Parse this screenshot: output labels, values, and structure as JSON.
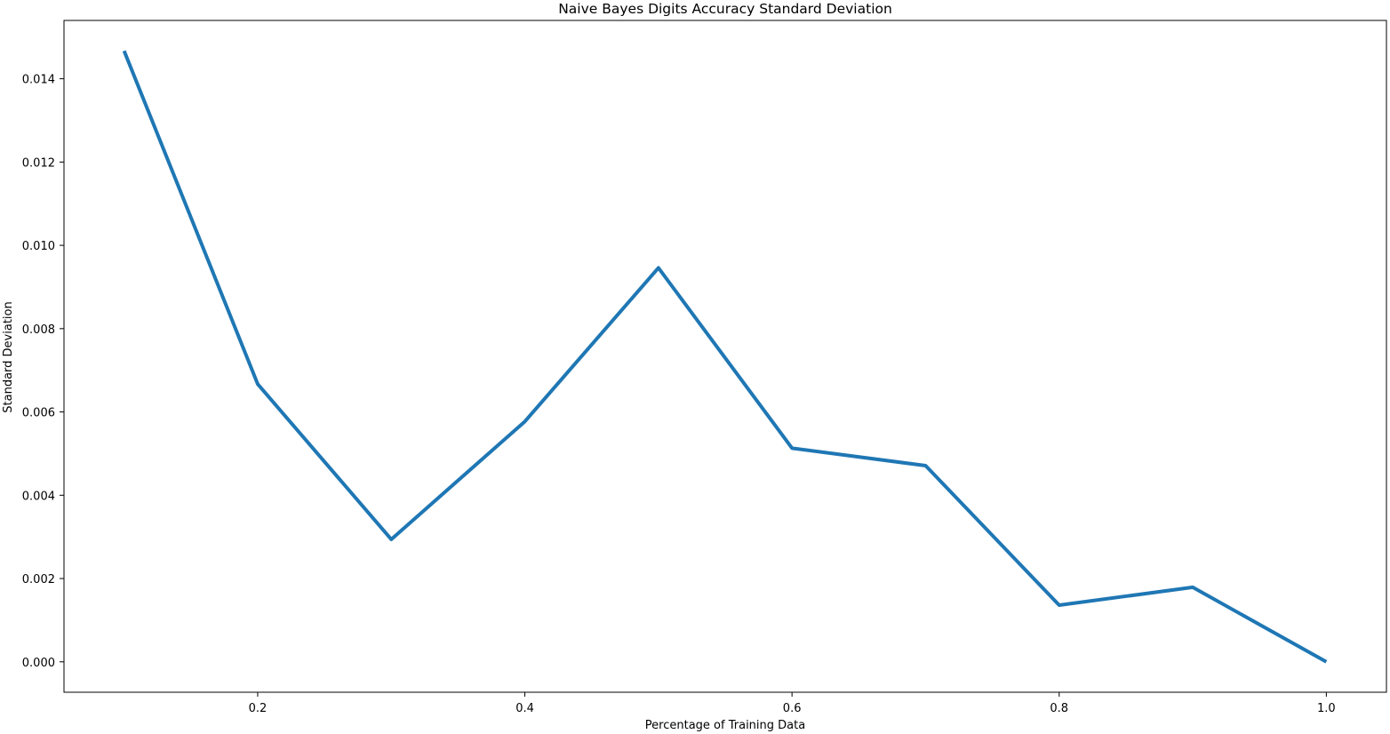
{
  "chart_data": {
    "type": "line",
    "title": "Naive Bayes Digits Accuracy Standard Deviation",
    "xlabel": "Percentage of Training Data",
    "ylabel": "Standard Deviation",
    "x": [
      0.1,
      0.2,
      0.3,
      0.4,
      0.5,
      0.6,
      0.7,
      0.8,
      0.9,
      1.0
    ],
    "series": [
      {
        "values": [
          0.01467,
          0.00667,
          0.00294,
          0.00577,
          0.00946,
          0.00513,
          0.00471,
          0.00136,
          0.00179,
          0.0
        ],
        "color": "#1f77b4"
      }
    ],
    "xlim": [
      0.055,
      1.045
    ],
    "ylim": [
      -0.00073,
      0.0154
    ],
    "xticks": [
      0.2,
      0.4,
      0.6,
      0.8,
      1.0
    ],
    "xtick_labels": [
      "0.2",
      "0.4",
      "0.6",
      "0.8",
      "1.0"
    ],
    "yticks": [
      0.0,
      0.002,
      0.004,
      0.006,
      0.008,
      0.01,
      0.012,
      0.014
    ],
    "ytick_labels": [
      "0.000",
      "0.002",
      "0.004",
      "0.006",
      "0.008",
      "0.010",
      "0.012",
      "0.014"
    ],
    "grid": false,
    "legend": "none"
  }
}
